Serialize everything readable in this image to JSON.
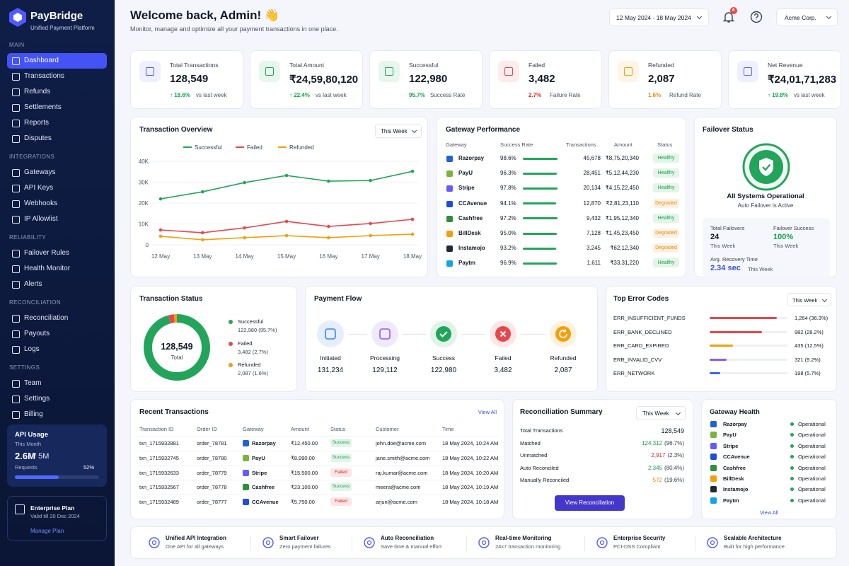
{
  "sidebar": {
    "brand": "PayBridge",
    "tagline": "Unified Payment Platform",
    "sections": [
      {
        "title": "MAIN",
        "items": [
          "Dashboard",
          "Transactions",
          "Refunds",
          "Settlements",
          "Reports",
          "Disputes"
        ]
      },
      {
        "title": "INTEGRATIONS",
        "items": [
          "Gateways",
          "API Keys",
          "Webhooks",
          "IP Allowlist"
        ]
      },
      {
        "title": "RELIABILITY",
        "items": [
          "Failover Rules",
          "Health Monitor",
          "Alerts"
        ]
      },
      {
        "title": "RECONCILIATION",
        "items": [
          "Reconciliation",
          "Payouts",
          "Logs"
        ]
      },
      {
        "title": "SETTINGS",
        "items": [
          "Team",
          "Settings",
          "Billing"
        ]
      }
    ],
    "api_usage": {
      "title": "API Usage",
      "period": "This Month",
      "used": "2.6M",
      "limit": "/ 5M",
      "caption": "Requests",
      "percent": 52,
      "percent_label": "52%"
    },
    "plan": {
      "title": "Enterprise Plan",
      "valid": "Valid till 20 Dec 2024",
      "link": "Manage Plan"
    }
  },
  "header": {
    "title": "Welcome back, Admin! 👋",
    "subtitle": "Monitor, manage and optimize all your payment transactions in one place.",
    "date_range": "12 May 2024 - 18 May 2024",
    "notifications": "6",
    "account": "Acme Corp."
  },
  "kpis": [
    {
      "label": "Total Transactions",
      "value": "128,549",
      "change": "↑ 18.6%",
      "note": "vs last week",
      "change_color": "#16a34a"
    },
    {
      "label": "Total Amount",
      "value": "₹24,59,80,120",
      "change": "↑ 22.4%",
      "note": "vs last week",
      "change_color": "#16a34a"
    },
    {
      "label": "Successful",
      "value": "122,980",
      "change": "95.7%",
      "note": "Success Rate",
      "change_color": "#16a34a"
    },
    {
      "label": "Failed",
      "value": "3,482",
      "change": "2.7%",
      "note": "Failure Rate",
      "change_color": "#dc2626"
    },
    {
      "label": "Refunded",
      "value": "2,087",
      "change": "1.6%",
      "note": "Refund Rate",
      "change_color": "#ea8a0c"
    },
    {
      "label": "Net Revenue",
      "value": "₹24,01,71,283",
      "change": "↑ 19.8%",
      "note": "vs last week",
      "change_color": "#16a34a"
    }
  ],
  "chart_data": {
    "type": "line",
    "title": "Transaction Overview",
    "filter": "This Week",
    "categories": [
      "12 May",
      "13 May",
      "14 May",
      "15 May",
      "16 May",
      "17 May",
      "18 May"
    ],
    "series": [
      {
        "name": "Successful",
        "color": "#22a55a",
        "values": [
          22000,
          25400,
          29800,
          33200,
          30500,
          30800,
          35200
        ]
      },
      {
        "name": "Failed",
        "color": "#e5484d",
        "values": [
          7100,
          5800,
          8100,
          11200,
          8800,
          10200,
          12200
        ]
      },
      {
        "name": "Refunded",
        "color": "#f59e0b",
        "values": [
          4100,
          2400,
          3400,
          4400,
          3400,
          4400,
          5100
        ]
      }
    ],
    "ylim": [
      0,
      40000
    ],
    "yticks": [
      0,
      {
        "value": 10000,
        "label": "10K"
      },
      {
        "value": 20000,
        "label": "20K"
      },
      {
        "value": 30000,
        "label": "30K"
      },
      {
        "value": 40000,
        "label": "40K"
      }
    ],
    "grid": true
  },
  "gateway_performance": {
    "title": "Gateway Performance",
    "columns": [
      "Gateway",
      "Success Rate",
      "Transactions",
      "Amount",
      "Status"
    ],
    "rows": [
      {
        "name": "Razorpay",
        "color": "#1e63d6",
        "success_rate": 98.6,
        "success_rate_label": "98.6%",
        "transactions": "45,678",
        "amount": "₹8,75,20,340",
        "status": "Healthy",
        "status_color": "#16a34a"
      },
      {
        "name": "PayU",
        "color": "#7ab33e",
        "success_rate": 96.3,
        "success_rate_label": "96.3%",
        "transactions": "28,451",
        "amount": "₹5,12,44,230",
        "status": "Healthy",
        "status_color": "#16a34a"
      },
      {
        "name": "Stripe",
        "color": "#635bff",
        "success_rate": 97.8,
        "success_rate_label": "97.8%",
        "transactions": "20,134",
        "amount": "₹4,15,22,450",
        "status": "Healthy",
        "status_color": "#16a34a"
      },
      {
        "name": "CCAvenue",
        "color": "#1d4ed8",
        "success_rate": 94.1,
        "success_rate_label": "94.1%",
        "transactions": "12,870",
        "amount": "₹2,81,23,110",
        "status": "Degraded",
        "status_color": "#ea8a0c"
      },
      {
        "name": "Cashfree",
        "color": "#2f8f3a",
        "success_rate": 97.2,
        "success_rate_label": "97.2%",
        "transactions": "9,432",
        "amount": "₹1,95,12,340",
        "status": "Healthy",
        "status_color": "#16a34a"
      },
      {
        "name": "BillDesk",
        "color": "#f59e0b",
        "success_rate": 95.0,
        "success_rate_label": "95.0%",
        "transactions": "7,128",
        "amount": "₹1,45,23,450",
        "status": "Degraded",
        "status_color": "#ea8a0c"
      },
      {
        "name": "Instamojo",
        "color": "#1f2937",
        "success_rate": 93.2,
        "success_rate_label": "93.2%",
        "transactions": "3,245",
        "amount": "₹62,12,340",
        "status": "Degraded",
        "status_color": "#ea8a0c"
      },
      {
        "name": "Paytm",
        "color": "#0ea5e9",
        "success_rate": 96.9,
        "success_rate_label": "96.9%",
        "transactions": "1,611",
        "amount": "₹33,31,220",
        "status": "Healthy",
        "status_color": "#16a34a"
      }
    ]
  },
  "failover": {
    "title": "Failover Status",
    "status": "All Systems Operational",
    "subtitle": "Auto Failover is Active",
    "total_label": "Total Failovers",
    "total_value": "24",
    "total_period": "This Week",
    "success_label": "Failover Success",
    "success_value": "100%",
    "success_period": "This Week",
    "recovery_label": "Avg. Recovery Time",
    "recovery_value": "2.34 sec",
    "recovery_period": "This Week"
  },
  "transaction_status": {
    "title": "Transaction Status",
    "total": "128,549",
    "total_label": "Total",
    "segments": [
      {
        "name": "Successful",
        "value": 122980,
        "label": "122,980 (95.7%)",
        "color": "#22a55a"
      },
      {
        "name": "Failed",
        "value": 3482,
        "label": "3,482 (2.7%)",
        "color": "#e5484d"
      },
      {
        "name": "Refunded",
        "value": 2087,
        "label": "2,087 (1.6%)",
        "color": "#f59e0b"
      }
    ]
  },
  "payment_flow": {
    "title": "Payment Flow",
    "steps": [
      {
        "name": "Initiated",
        "value": "131,234",
        "color": "#3b82f6"
      },
      {
        "name": "Processing",
        "value": "129,112",
        "color": "#8b5cf6"
      },
      {
        "name": "Success",
        "value": "122,980",
        "color": "#22a55a"
      },
      {
        "name": "Failed",
        "value": "3,482",
        "color": "#e5484d"
      },
      {
        "name": "Refunded",
        "value": "2,087",
        "color": "#f59e0b"
      }
    ]
  },
  "top_errors": {
    "title": "Top Error Codes",
    "filter": "This Week",
    "rows": [
      {
        "code": "ERR_INSUFFICIENT_FUNDS",
        "count": 1264,
        "label": "1,264 (36.3%)",
        "color": "#e5484d"
      },
      {
        "code": "ERR_BANK_DECLINED",
        "count": 982,
        "label": "982 (28.2%)",
        "color": "#e5484d"
      },
      {
        "code": "ERR_CARD_EXPIRED",
        "count": 435,
        "label": "435 (12.5%)",
        "color": "#f59e0b"
      },
      {
        "code": "ERR_INVALID_CVV",
        "count": 321,
        "label": "321 (9.2%)",
        "color": "#8b5cf6"
      },
      {
        "code": "ERR_NETWORK",
        "count": 198,
        "label": "198 (5.7%)",
        "color": "#3b63f6"
      }
    ]
  },
  "recent_transactions": {
    "title": "Recent Transactions",
    "view_all": "View All",
    "columns": [
      "Transaction ID",
      "Order ID",
      "Gateway",
      "Amount",
      "Status",
      "Customer",
      "Time"
    ],
    "rows": [
      {
        "id": "txn_1715932881",
        "order": "order_78781",
        "gateway": "Razorpay",
        "gateway_color": "#1e63d6",
        "amount": "₹12,450.00",
        "status": "Success",
        "status_color": "#16a34a",
        "customer": "john.doe@acme.com",
        "time": "18 May 2024, 10:24 AM"
      },
      {
        "id": "txn_1715932745",
        "order": "order_78780",
        "gateway": "PayU",
        "gateway_color": "#7ab33e",
        "amount": "₹8,990.00",
        "status": "Success",
        "status_color": "#16a34a",
        "customer": "jane.smith@acme.com",
        "time": "18 May 2024, 10:22 AM"
      },
      {
        "id": "txn_1715932633",
        "order": "order_78779",
        "gateway": "Stripe",
        "gateway_color": "#635bff",
        "amount": "₹15,500.00",
        "status": "Failed",
        "status_color": "#dc2626",
        "customer": "raj.kumar@acme.com",
        "time": "18 May 2024, 10:20 AM"
      },
      {
        "id": "txn_1715932567",
        "order": "order_78778",
        "gateway": "Cashfree",
        "gateway_color": "#2f8f3a",
        "amount": "₹23,100.00",
        "status": "Success",
        "status_color": "#16a34a",
        "customer": "meera@acme.com",
        "time": "18 May 2024, 10:19 AM"
      },
      {
        "id": "txn_1715932489",
        "order": "order_78777",
        "gateway": "CCAvenue",
        "gateway_color": "#1d4ed8",
        "amount": "₹5,750.00",
        "status": "Failed",
        "status_color": "#dc2626",
        "customer": "arjun@acme.com",
        "time": "18 May 2024, 10:18 AM"
      }
    ]
  },
  "reconciliation": {
    "title": "Reconciliation Summary",
    "filter": "This Week",
    "button": "View Reconciliation",
    "rows": [
      {
        "label": "Total Transactions",
        "value": "128,549",
        "color": "#111827"
      },
      {
        "label": "Matched",
        "value": "124,312",
        "note": "(96.7%)",
        "color": "#16a34a"
      },
      {
        "label": "Unmatched",
        "value": "2,917",
        "note": "(2.3%)",
        "color": "#dc2626"
      },
      {
        "label": "Auto Reconciled",
        "value": "2,345",
        "note": "(80.4%)",
        "color": "#16a34a"
      },
      {
        "label": "Manually Reconciled",
        "value": "572",
        "note": "(19.6%)",
        "color": "#ea8a0c"
      }
    ]
  },
  "gateway_health": {
    "title": "Gateway Health",
    "view_all": "View All",
    "rows": [
      {
        "name": "Razorpay",
        "color": "#1e63d6",
        "status": "Operational"
      },
      {
        "name": "PayU",
        "color": "#7ab33e",
        "status": "Operational"
      },
      {
        "name": "Stripe",
        "color": "#635bff",
        "status": "Operational"
      },
      {
        "name": "CCAvenue",
        "color": "#1d4ed8",
        "status": "Operational"
      },
      {
        "name": "Cashfree",
        "color": "#2f8f3a",
        "status": "Operational"
      },
      {
        "name": "BillDesk",
        "color": "#f59e0b",
        "status": "Operational"
      },
      {
        "name": "Instamojo",
        "color": "#1f2937",
        "status": "Operational"
      },
      {
        "name": "Paytm",
        "color": "#0ea5e9",
        "status": "Operational"
      }
    ]
  },
  "features": [
    {
      "title": "Unified API Integration",
      "subtitle": "One API for all gateways"
    },
    {
      "title": "Smart Failover",
      "subtitle": "Zero payment failures"
    },
    {
      "title": "Auto Reconciliation",
      "subtitle": "Save time & manual effort"
    },
    {
      "title": "Real-time Monitoring",
      "subtitle": "24x7 transaction monitoring"
    },
    {
      "title": "Enterprise Security",
      "subtitle": "PCI-DSS Compliant"
    },
    {
      "title": "Scalable Architecture",
      "subtitle": "Built for high performance"
    }
  ]
}
